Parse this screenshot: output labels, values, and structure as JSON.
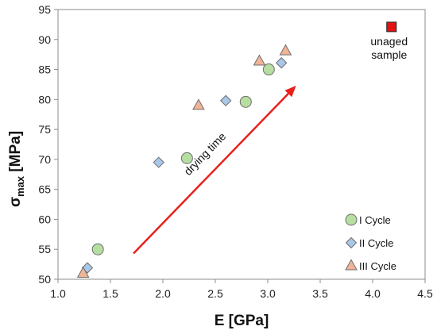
{
  "chart_data": {
    "type": "scatter",
    "xlabel": "E [GPa]",
    "ylabel_main": "σ",
    "ylabel_sub": "max",
    "ylabel_unit": " [MPa]",
    "xlim": [
      1.0,
      4.5
    ],
    "ylim": [
      50,
      95
    ],
    "x_ticks": [
      "1.0",
      "1.5",
      "2.0",
      "2.5",
      "3.0",
      "3.5",
      "4.0",
      "4.5"
    ],
    "y_ticks": [
      "50",
      "55",
      "60",
      "65",
      "70",
      "75",
      "80",
      "85",
      "90",
      "95"
    ],
    "grid": false,
    "legend_position": "bottom-right",
    "series": [
      {
        "name": "I Cycle",
        "marker": "circle",
        "color": "#b6dea0",
        "points": [
          {
            "x": 1.38,
            "y": 55.0
          },
          {
            "x": 2.23,
            "y": 70.2
          },
          {
            "x": 2.79,
            "y": 79.6
          },
          {
            "x": 3.01,
            "y": 85.0
          }
        ]
      },
      {
        "name": "II Cycle",
        "marker": "diamond",
        "color": "#a9c7e8",
        "points": [
          {
            "x": 1.28,
            "y": 51.9
          },
          {
            "x": 1.96,
            "y": 69.5
          },
          {
            "x": 2.6,
            "y": 79.8
          },
          {
            "x": 3.13,
            "y": 86.1
          }
        ]
      },
      {
        "name": "III Cycle",
        "marker": "triangle",
        "color": "#f0b496",
        "points": [
          {
            "x": 1.24,
            "y": 51.0
          },
          {
            "x": 2.34,
            "y": 79.0
          },
          {
            "x": 2.92,
            "y": 86.4
          },
          {
            "x": 3.17,
            "y": 88.1
          }
        ]
      }
    ],
    "reference_point": {
      "label_line1": "unaged",
      "label_line2": "sample",
      "x": 4.18,
      "y": 92.1,
      "color": "#e11414"
    },
    "arrow": {
      "label": "drying time",
      "from": [
        1.72,
        54.3
      ],
      "to": [
        3.27,
        82.3
      ],
      "color": "#e8201c"
    }
  }
}
